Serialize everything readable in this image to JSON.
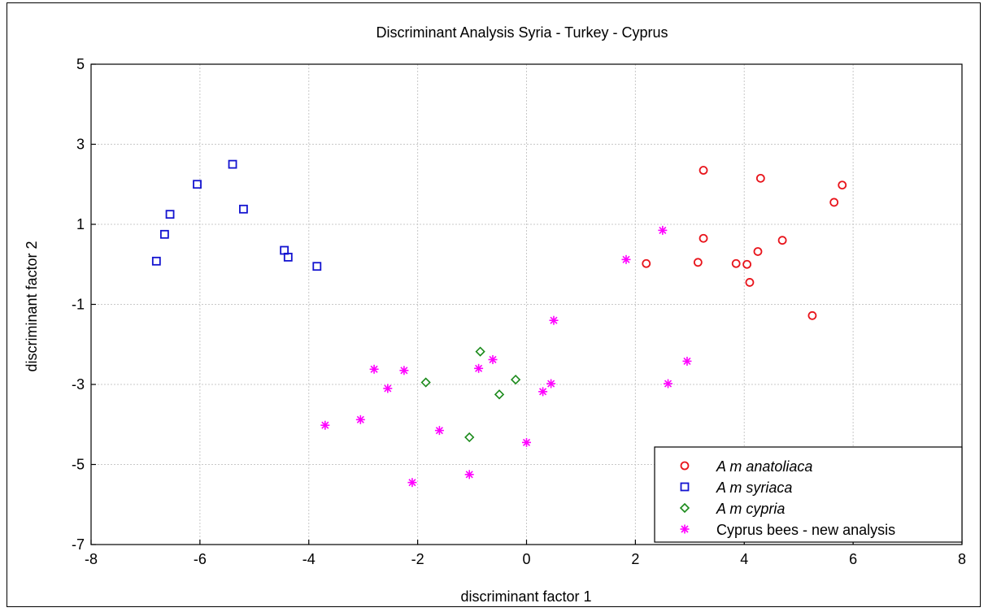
{
  "chart_data": {
    "type": "scatter",
    "title": "Discriminant Analysis Syria - Turkey - Cyprus",
    "xlabel": "discriminant factor 1",
    "ylabel": "discriminant factor 2",
    "xlim": [
      -8,
      8
    ],
    "ylim": [
      -7,
      5
    ],
    "xticks": [
      -8,
      -6,
      -4,
      -2,
      0,
      2,
      4,
      6,
      8
    ],
    "yticks": [
      -7,
      -5,
      -3,
      -1,
      1,
      3,
      5
    ],
    "grid": true,
    "legend_position": "bottom-right",
    "series": [
      {
        "name": "A m anatoliaca",
        "marker": "circle",
        "color": "#e8141b",
        "points": [
          [
            2.2,
            0.02
          ],
          [
            3.15,
            0.05
          ],
          [
            3.25,
            2.35
          ],
          [
            3.25,
            0.65
          ],
          [
            3.85,
            0.02
          ],
          [
            4.05,
            0.0
          ],
          [
            4.1,
            -0.45
          ],
          [
            4.25,
            0.32
          ],
          [
            4.3,
            2.15
          ],
          [
            4.7,
            0.6
          ],
          [
            5.25,
            -1.28
          ],
          [
            5.65,
            1.55
          ],
          [
            5.8,
            1.98
          ]
        ]
      },
      {
        "name": "A m syriaca",
        "marker": "square",
        "color": "#1313d0",
        "points": [
          [
            -6.8,
            0.08
          ],
          [
            -6.65,
            0.75
          ],
          [
            -6.55,
            1.25
          ],
          [
            -6.05,
            2.0
          ],
          [
            -5.4,
            2.5
          ],
          [
            -5.2,
            1.38
          ],
          [
            -4.45,
            0.35
          ],
          [
            -4.38,
            0.18
          ],
          [
            -3.85,
            -0.05
          ]
        ]
      },
      {
        "name": "A m cypria",
        "marker": "diamond",
        "color": "#1a8a1a",
        "points": [
          [
            -1.85,
            -2.95
          ],
          [
            -1.05,
            -4.32
          ],
          [
            -0.85,
            -2.18
          ],
          [
            -0.5,
            -3.25
          ],
          [
            -0.2,
            -2.88
          ]
        ]
      },
      {
        "name": "Cyprus bees - new analysis",
        "marker": "asterisk",
        "color": "#ff00ff",
        "points": [
          [
            -3.7,
            -4.02
          ],
          [
            -3.05,
            -3.88
          ],
          [
            -2.8,
            -2.62
          ],
          [
            -2.55,
            -3.1
          ],
          [
            -2.25,
            -2.65
          ],
          [
            -2.1,
            -5.45
          ],
          [
            -1.6,
            -4.15
          ],
          [
            -1.05,
            -5.25
          ],
          [
            -0.88,
            -2.6
          ],
          [
            -0.62,
            -2.38
          ],
          [
            0.0,
            -4.45
          ],
          [
            0.3,
            -3.18
          ],
          [
            0.45,
            -2.98
          ],
          [
            0.5,
            -1.4
          ],
          [
            1.83,
            0.12
          ],
          [
            2.5,
            0.85
          ],
          [
            2.6,
            -2.98
          ],
          [
            2.95,
            -2.42
          ]
        ]
      }
    ]
  }
}
